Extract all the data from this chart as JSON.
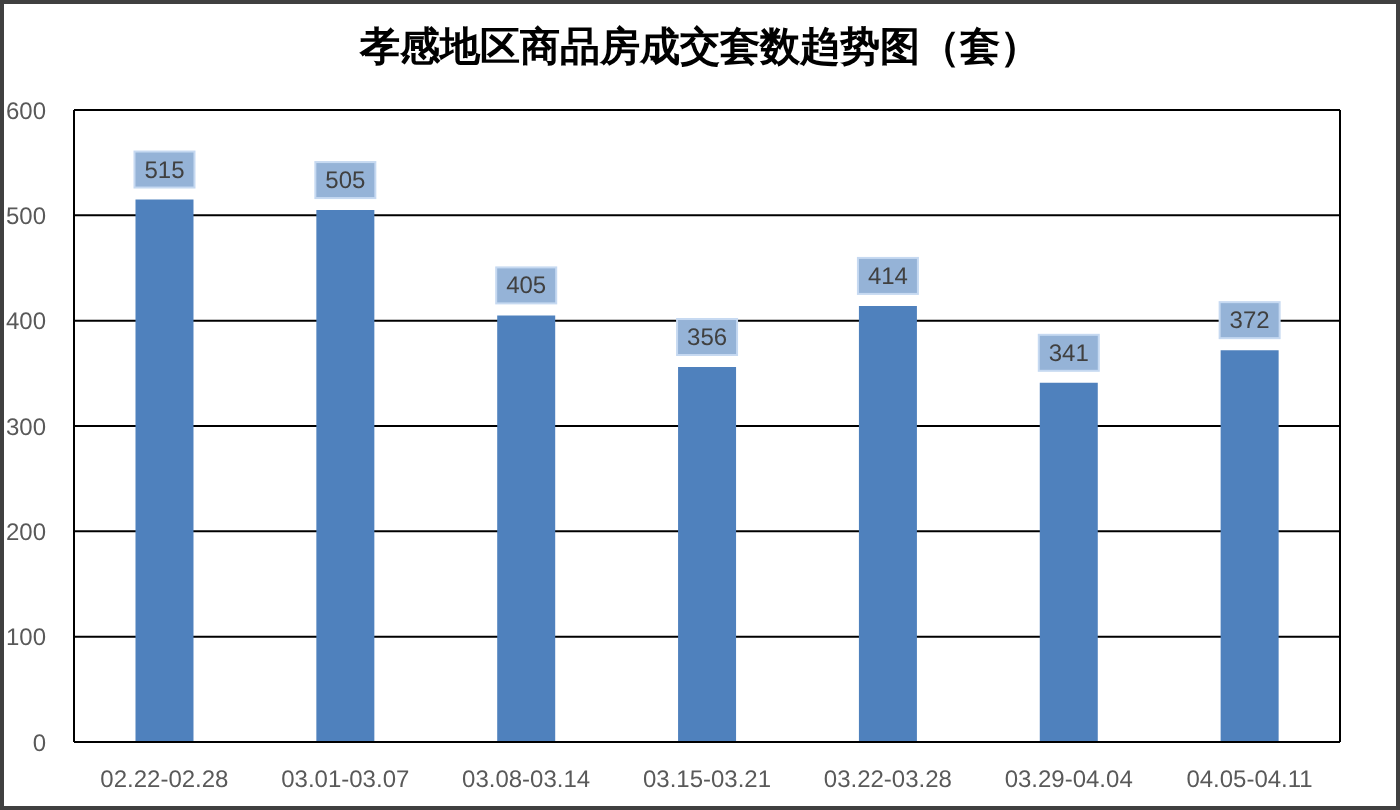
{
  "chart_data": {
    "type": "bar",
    "title": "孝感地区商品房成交套数趋势图（套）",
    "categories": [
      "02.22-02.28",
      "03.01-03.07",
      "03.08-03.14",
      "03.15-03.21",
      "03.22-03.28",
      "03.29-04.04",
      "04.05-04.11"
    ],
    "values": [
      515,
      505,
      405,
      356,
      414,
      341,
      372
    ],
    "color": "#4f81bd",
    "ylim": [
      0,
      600
    ],
    "yticks": [
      0,
      100,
      200,
      300,
      400,
      500,
      600
    ],
    "grid": "y",
    "data_labels": true
  }
}
